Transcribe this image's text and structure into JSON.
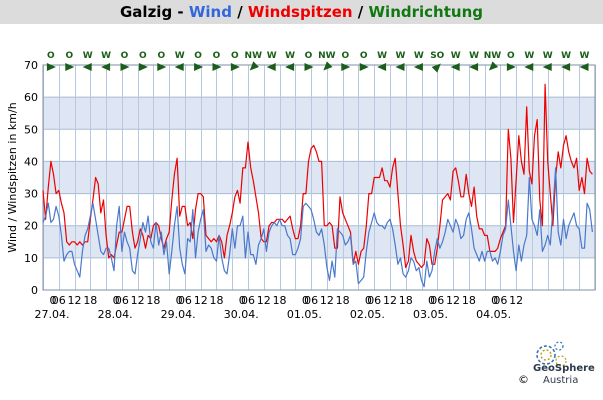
{
  "title": {
    "station": "Galzig - ",
    "wind": "Wind",
    "sep1": " / ",
    "gusts": "Windspitzen",
    "sep2": " / ",
    "direction": "Windrichtung",
    "colors": {
      "wind": "#3366dd",
      "gusts": "#ee0000",
      "direction": "#117711"
    }
  },
  "logo": {
    "name": "GeoSphere",
    "sub": "Austria",
    "copyright": "©"
  },
  "chart_data": {
    "type": "line",
    "ylabel": "Wind / Windspitzen in km/h",
    "ylim": [
      0,
      70
    ],
    "yticks": [
      0,
      10,
      20,
      30,
      40,
      50,
      60,
      70
    ],
    "grid": true,
    "band_color": "#dde6f2",
    "x_unit": "hours",
    "xlim": [
      0,
      210
    ],
    "xtick_labels": [
      "0",
      "06",
      "12",
      "18",
      "0",
      "06",
      "12",
      "18",
      "0",
      "06",
      "12",
      "18",
      "0",
      "06",
      "12",
      "18",
      "0",
      "06",
      "12",
      "18",
      "0",
      "06",
      "12",
      "18",
      "0",
      "06",
      "12",
      "18",
      "0",
      "06",
      "12"
    ],
    "date_labels": [
      "27.04.",
      "28.04.",
      "29.04.",
      "30.04.",
      "01.05.",
      "02.05.",
      "03.05.",
      "04.05."
    ],
    "direction_labels": [
      "O",
      "O",
      "W",
      "W",
      "O",
      "O",
      "O",
      "W",
      "O",
      "O",
      "O",
      "NW",
      "W",
      "W",
      "O",
      "NW",
      "O",
      "O",
      "W",
      "W",
      "W",
      "SO",
      "W",
      "W",
      "NW",
      "O",
      "W",
      "W",
      "W",
      "W"
    ],
    "series": [
      {
        "name": "Windspitzen",
        "color": "#ee0000",
        "values": [
          31,
          22,
          32,
          40,
          36,
          30,
          31,
          27,
          24,
          15,
          14,
          15,
          15,
          14,
          15,
          14,
          15,
          15,
          22,
          28,
          35,
          33,
          24,
          28,
          17,
          10,
          11,
          10,
          14,
          18,
          18,
          22,
          26,
          26,
          18,
          13,
          15,
          19,
          17,
          13,
          17,
          16,
          20,
          21,
          20,
          16,
          13,
          16,
          18,
          28,
          36,
          41,
          23,
          26,
          26,
          20,
          21,
          16,
          25,
          30,
          30,
          29,
          17,
          16,
          15,
          16,
          15,
          17,
          15,
          10,
          17,
          20,
          24,
          29,
          31,
          27,
          38,
          38,
          46,
          38,
          34,
          29,
          24,
          16,
          15,
          15,
          20,
          21,
          21,
          22,
          22,
          22,
          21,
          22,
          23,
          19,
          16,
          16,
          20,
          30,
          30,
          40,
          44,
          45,
          43,
          40,
          40,
          20,
          20,
          21,
          20,
          13,
          13,
          29,
          24,
          22,
          20,
          18,
          8,
          12,
          8,
          12,
          13,
          20,
          30,
          30,
          35,
          35,
          35,
          38,
          34,
          34,
          32,
          38,
          41,
          30,
          20,
          14,
          7,
          9,
          17,
          12,
          9,
          8,
          7,
          8,
          16,
          14,
          8,
          8,
          13,
          20,
          28,
          29,
          30,
          28,
          37,
          38,
          34,
          29,
          29,
          36,
          30,
          26,
          32,
          23,
          19,
          19,
          17,
          17,
          12,
          12,
          12,
          13,
          16,
          18,
          20,
          50,
          41,
          21,
          34,
          48,
          40,
          36,
          57,
          37,
          33,
          48,
          53,
          28,
          20,
          64,
          40,
          30,
          20,
          35,
          43,
          38,
          45,
          48,
          43,
          40,
          38,
          41,
          31,
          35,
          30,
          41,
          37,
          36
        ]
      },
      {
        "name": "Wind",
        "color": "#4a78cc",
        "values": [
          21,
          23,
          27,
          21,
          22,
          26,
          23,
          17,
          9,
          11,
          12,
          12,
          8,
          6,
          4,
          12,
          17,
          19,
          23,
          27,
          22,
          17,
          12,
          11,
          13,
          13,
          10,
          6,
          20,
          26,
          12,
          18,
          15,
          13,
          6,
          5,
          11,
          16,
          21,
          18,
          23,
          15,
          13,
          21,
          14,
          18,
          11,
          15,
          5,
          12,
          20,
          26,
          13,
          8,
          5,
          16,
          15,
          25,
          10,
          18,
          22,
          25,
          12,
          14,
          13,
          10,
          9,
          17,
          10,
          6,
          5,
          11,
          19,
          13,
          20,
          20,
          23,
          10,
          18,
          11,
          11,
          8,
          14,
          16,
          19,
          12,
          18,
          20,
          21,
          20,
          22,
          20,
          20,
          17,
          16,
          11,
          11,
          13,
          16,
          26,
          27,
          26,
          25,
          22,
          18,
          17,
          19,
          14,
          7,
          3,
          9,
          4,
          19,
          18,
          17,
          14,
          15,
          17,
          8,
          9,
          2,
          3,
          4,
          12,
          18,
          21,
          24,
          21,
          20,
          20,
          19,
          21,
          22,
          19,
          14,
          8,
          10,
          5,
          4,
          6,
          10,
          9,
          6,
          7,
          3,
          1,
          9,
          4,
          6,
          12,
          16,
          13,
          15,
          18,
          22,
          20,
          18,
          22,
          20,
          16,
          17,
          22,
          24,
          19,
          13,
          11,
          9,
          12,
          9,
          12,
          12,
          9,
          10,
          8,
          12,
          17,
          19,
          28,
          20,
          12,
          6,
          14,
          9,
          14,
          17,
          35,
          22,
          20,
          17,
          25,
          12,
          14,
          17,
          14,
          25,
          38,
          18,
          14,
          22,
          16,
          20,
          22,
          24,
          20,
          19,
          13,
          13,
          27,
          25,
          18
        ]
      }
    ]
  }
}
